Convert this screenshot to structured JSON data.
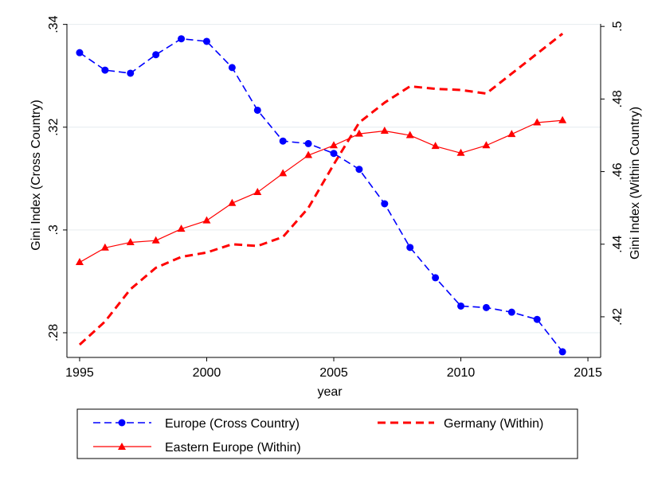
{
  "chart_data": {
    "type": "line",
    "xlabel": "year",
    "ylabel_left": "Gini Index (Cross Country)",
    "ylabel_right": "Gini Index (Within Country)",
    "x_ticks": [
      "1995",
      "2000",
      "2005",
      "2010",
      "2015"
    ],
    "x_tick_values": [
      1995,
      2000,
      2005,
      2010,
      2015
    ],
    "xlim": [
      1994.5,
      2015.5
    ],
    "y_left_ticks": [
      ".28",
      ".3",
      ".32",
      ".34"
    ],
    "y_left_tick_values": [
      0.28,
      0.3,
      0.32,
      0.34
    ],
    "ylim_left": [
      0.2752,
      0.3401
    ],
    "y_right_ticks": [
      ".42",
      ".44",
      ".46",
      ".48",
      ".5"
    ],
    "y_right_tick_values": [
      0.42,
      0.44,
      0.46,
      0.48,
      0.5
    ],
    "ylim_right": [
      0.4088,
      0.5007
    ],
    "grid": true,
    "legend_position": "bottom",
    "x": [
      1995,
      1996,
      1997,
      1998,
      1999,
      2000,
      2001,
      2002,
      2003,
      2004,
      2005,
      2006,
      2007,
      2008,
      2009,
      2010,
      2011,
      2012,
      2013,
      2014
    ],
    "series": [
      {
        "name": "Europe (Cross Country)",
        "axis": "left",
        "color": "#0000ff",
        "style": "dashed",
        "marker": "circle",
        "values": [
          0.3345,
          0.3311,
          0.3305,
          0.3341,
          0.3372,
          0.3367,
          0.3316,
          0.3233,
          0.3173,
          0.3168,
          0.3149,
          0.3118,
          0.3051,
          0.2966,
          0.2907,
          0.2852,
          0.2849,
          0.284,
          0.2826,
          0.2763
        ]
      },
      {
        "name": "Germany (Within)",
        "axis": "right",
        "color": "#ff0000",
        "style": "dashed-bold",
        "marker": "none",
        "values": [
          0.4123,
          0.4187,
          0.4276,
          0.4335,
          0.4365,
          0.4377,
          0.44,
          0.4395,
          0.442,
          0.45,
          0.462,
          0.4735,
          0.479,
          0.4835,
          0.4828,
          0.4825,
          0.4815,
          0.487,
          0.4925,
          0.498
        ]
      },
      {
        "name": "Eastern Europe (Within)",
        "axis": "right",
        "color": "#ff0000",
        "style": "solid",
        "marker": "triangle",
        "values": [
          0.435,
          0.439,
          0.4405,
          0.441,
          0.4442,
          0.4465,
          0.4513,
          0.4543,
          0.4595,
          0.4645,
          0.4672,
          0.4704,
          0.4712,
          0.47,
          0.467,
          0.4651,
          0.4672,
          0.4703,
          0.4735,
          0.4741
        ]
      }
    ]
  }
}
